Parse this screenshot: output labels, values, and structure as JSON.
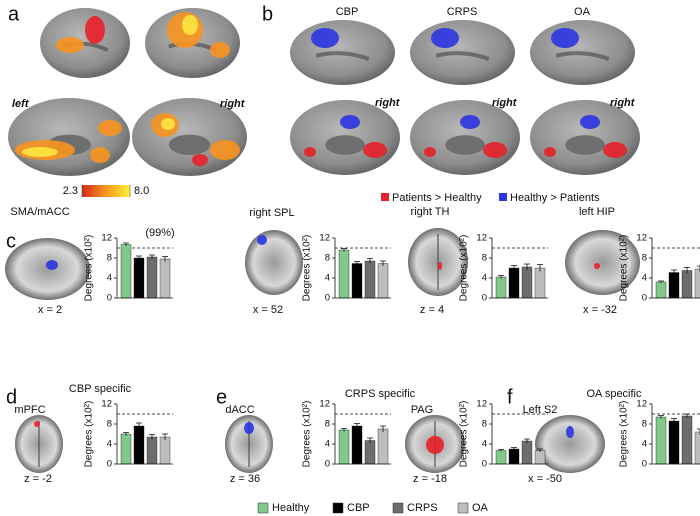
{
  "figure": {
    "panel_labels": [
      "a",
      "b",
      "c",
      "d",
      "e",
      "f"
    ],
    "panel_a": {
      "hemispheres": [
        "left",
        "right"
      ],
      "colorbar_ticks": [
        2.3,
        {
          "value": 8,
          "label": "8.0"
        }
      ]
    },
    "panel_b": {
      "groups": [
        "CBP",
        "CRPS",
        "OA"
      ],
      "hemispheres": [
        "right",
        "right",
        "right"
      ],
      "legend": [
        {
          "label": "Patients > Healthy",
          "color": "#e8202a"
        },
        {
          "label": "Healthy > Patients",
          "color": "#2b35e0"
        }
      ]
    },
    "panel_titles": [
      "CBP specific",
      "CRPS specific",
      "OA specific"
    ],
    "threshold_label": "(99%)",
    "group_legend": [
      {
        "name": "Healthy",
        "color": "#80c98a"
      },
      {
        "name": "CBP",
        "color": "#000000"
      },
      {
        "name": "CRPS",
        "color": "#6d6d6d"
      },
      {
        "name": "OA",
        "color": "#bdbdbd"
      }
    ]
  },
  "chart_data": [
    {
      "type": "bar",
      "region": "SMA/mACC",
      "coordinate": "x = 2",
      "ylabel": "Degrees (x10²)",
      "ylim": [
        0,
        12
      ],
      "yticks": [
        0,
        4,
        8,
        12
      ],
      "threshold": 10,
      "values": [
        10.7,
        8.0,
        8.2,
        7.8
      ],
      "errors": [
        0.3,
        0.4,
        0.4,
        0.5
      ]
    },
    {
      "type": "bar",
      "region": "right SPL",
      "coordinate": "x = 52",
      "ylabel": "Degrees (x10²)",
      "ylim": [
        0,
        12
      ],
      "yticks": [
        0,
        4,
        8,
        12
      ],
      "threshold": 10,
      "values": [
        9.6,
        6.9,
        7.4,
        6.9
      ],
      "errors": [
        0.3,
        0.4,
        0.5,
        0.5
      ]
    },
    {
      "type": "bar",
      "region": "right TH",
      "coordinate": "z = 4",
      "ylabel": "Degrees (x10²)",
      "ylim": [
        0,
        12
      ],
      "yticks": [
        0,
        4,
        8,
        12
      ],
      "threshold": 10,
      "values": [
        4.2,
        6.0,
        6.2,
        6.0
      ],
      "errors": [
        0.3,
        0.5,
        0.6,
        0.7
      ]
    },
    {
      "type": "bar",
      "region": "left HIP",
      "coordinate": "x = -32",
      "ylabel": "Degrees (x10²)",
      "ylim": [
        0,
        12
      ],
      "yticks": [
        0,
        4,
        8,
        12
      ],
      "threshold": 10,
      "values": [
        3.2,
        5.1,
        5.5,
        5.8
      ],
      "errors": [
        0.2,
        0.5,
        0.6,
        0.6
      ]
    },
    {
      "type": "bar",
      "region": "mPFC",
      "coordinate": "z = -2",
      "ylabel": "Degrees (x10²)",
      "ylim": [
        0,
        12
      ],
      "yticks": [
        0,
        4,
        8,
        12
      ],
      "threshold": 10,
      "values": [
        6.0,
        7.6,
        5.4,
        5.4
      ],
      "errors": [
        0.3,
        0.6,
        0.5,
        0.6
      ]
    },
    {
      "type": "bar",
      "region": "dACC",
      "coordinate": "z = 36",
      "ylabel": "Degrees (x10²)",
      "ylim": [
        0,
        12
      ],
      "yticks": [
        0,
        4,
        8,
        12
      ],
      "threshold": 10,
      "values": [
        6.8,
        7.6,
        4.7,
        7.0
      ],
      "errors": [
        0.3,
        0.5,
        0.5,
        0.6
      ]
    },
    {
      "type": "bar",
      "region": "PAG",
      "coordinate": "z = -18",
      "ylabel": "Degrees (x10²)",
      "ylim": [
        0,
        12
      ],
      "yticks": [
        0,
        4,
        8,
        12
      ],
      "threshold": 10,
      "values": [
        2.7,
        3.0,
        4.6,
        2.7
      ],
      "errors": [
        0.2,
        0.3,
        0.4,
        0.3
      ]
    },
    {
      "type": "bar",
      "region": "Left S2",
      "coordinate": "x = -50",
      "ylabel": "Degrees (x10²)",
      "ylim": [
        0,
        12
      ],
      "yticks": [
        0,
        4,
        8,
        12
      ],
      "threshold": 10,
      "values": [
        9.4,
        8.6,
        9.6,
        6.4
      ],
      "errors": [
        0.3,
        0.5,
        0.4,
        0.6
      ]
    }
  ]
}
